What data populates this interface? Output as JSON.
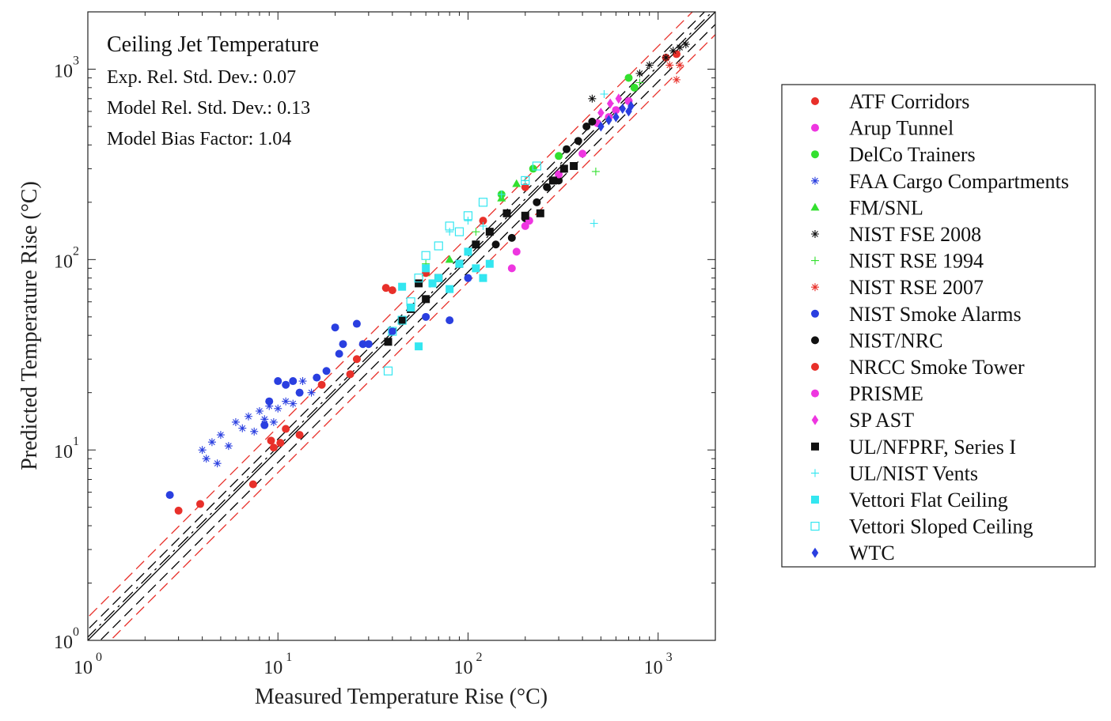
{
  "chart_data": {
    "type": "scatter",
    "title": "",
    "xlabel": "Measured Temperature Rise (°C)",
    "ylabel": "Predicted Temperature Rise (°C)",
    "xscale": "log",
    "yscale": "log",
    "xlim": [
      1,
      2000
    ],
    "ylim": [
      1,
      2000
    ],
    "xticks": [
      {
        "base": "10",
        "exp": "0",
        "value": 1
      },
      {
        "base": "10",
        "exp": "1",
        "value": 10
      },
      {
        "base": "10",
        "exp": "2",
        "value": 100
      },
      {
        "base": "10",
        "exp": "3",
        "value": 1000
      }
    ],
    "yticks": [
      {
        "base": "10",
        "exp": "0",
        "value": 1
      },
      {
        "base": "10",
        "exp": "1",
        "value": 10
      },
      {
        "base": "10",
        "exp": "2",
        "value": 100
      },
      {
        "base": "10",
        "exp": "3",
        "value": 1000
      }
    ],
    "annotations": {
      "title": "Ceiling Jet Temperature",
      "exp_std": "Exp. Rel. Std. Dev.: 0.07",
      "model_std": "Model Rel. Std. Dev.: 0.13",
      "bias": "Model Bias Factor: 1.04"
    },
    "legend_position": "outside-right",
    "reference_lines": {
      "identity": {
        "slope": 1.0,
        "color": "#000000",
        "style": "solid"
      },
      "exp_bounds": {
        "factors": [
          0.86,
          1.14
        ],
        "color": "#000000",
        "style": "dashed"
      },
      "model_line": {
        "factor": 1.04,
        "color": "#000000",
        "style": "dashdot"
      },
      "model_bounds": {
        "factors": [
          0.76,
          1.32
        ],
        "color": "#e8302a",
        "style": "dashed"
      }
    },
    "series": [
      {
        "name": "ATF Corridors",
        "marker": "circle",
        "color": "#e8302a",
        "points": [
          [
            3.0,
            4.8
          ],
          [
            3.9,
            5.2
          ],
          [
            7.4,
            6.6
          ],
          [
            9.2,
            11.2
          ],
          [
            9.5,
            10.3
          ],
          [
            10.3,
            10.9
          ],
          [
            11.0,
            12.9
          ],
          [
            13.0,
            12.0
          ],
          [
            17.0,
            22.0
          ],
          [
            24.0,
            25.0
          ],
          [
            26.0,
            30.0
          ],
          [
            1100,
            1150
          ],
          [
            1250,
            1200
          ]
        ]
      },
      {
        "name": "Arup Tunnel",
        "marker": "circle",
        "color": "#ee36e0",
        "points": [
          [
            180,
            110
          ],
          [
            200,
            150
          ],
          [
            480,
            520
          ],
          [
            600,
            610
          ],
          [
            700,
            680
          ]
        ]
      },
      {
        "name": "DelCo Trainers",
        "marker": "circle",
        "color": "#33e02f",
        "points": [
          [
            150,
            220
          ],
          [
            220,
            300
          ],
          [
            300,
            350
          ],
          [
            700,
            900
          ],
          [
            750,
            800
          ]
        ]
      },
      {
        "name": "FAA Cargo Compartments",
        "marker": "asterisk",
        "color": "#2a3fe0",
        "points": [
          [
            4.0,
            10.0
          ],
          [
            4.2,
            9.0
          ],
          [
            4.5,
            11.0
          ],
          [
            4.8,
            8.5
          ],
          [
            5.0,
            12.0
          ],
          [
            5.5,
            10.5
          ],
          [
            6.0,
            14.0
          ],
          [
            6.5,
            13.0
          ],
          [
            7.0,
            15.0
          ],
          [
            7.5,
            12.5
          ],
          [
            8.0,
            16.0
          ],
          [
            8.5,
            14.5
          ],
          [
            9.0,
            17.0
          ],
          [
            9.5,
            14.0
          ],
          [
            10.0,
            16.5
          ],
          [
            11.0,
            18.0
          ],
          [
            12.0,
            17.5
          ],
          [
            13.5,
            23.0
          ],
          [
            15.0,
            20.0
          ]
        ]
      },
      {
        "name": "FM/SNL",
        "marker": "triangle",
        "color": "#33e02f",
        "points": [
          [
            60,
            85
          ],
          [
            80,
            100
          ],
          [
            150,
            210
          ],
          [
            180,
            250
          ]
        ]
      },
      {
        "name": "NIST FSE 2008",
        "marker": "asterisk",
        "color": "#111111",
        "points": [
          [
            450,
            700
          ],
          [
            800,
            950
          ],
          [
            900,
            1050
          ],
          [
            1100,
            1150
          ],
          [
            1200,
            1250
          ],
          [
            1300,
            1300
          ],
          [
            1400,
            1350
          ]
        ]
      },
      {
        "name": "NIST RSE 1994",
        "marker": "plus",
        "color": "#33e02f",
        "points": [
          [
            60,
            95
          ],
          [
            110,
            140
          ],
          [
            200,
            260
          ],
          [
            470,
            290
          ],
          [
            800,
            850
          ]
        ]
      },
      {
        "name": "NIST RSE 2007",
        "marker": "asterisk",
        "color": "#e8302a",
        "points": [
          [
            1150,
            1050
          ],
          [
            1250,
            880
          ],
          [
            1300,
            1050
          ]
        ]
      },
      {
        "name": "NIST Smoke Alarms",
        "marker": "circle",
        "color": "#2a3fe0",
        "points": [
          [
            2.7,
            5.8
          ],
          [
            8.5,
            13.5
          ],
          [
            9.0,
            18.0
          ],
          [
            10.0,
            23.0
          ],
          [
            11.0,
            22.0
          ],
          [
            12.0,
            23.0
          ],
          [
            13.0,
            20.0
          ],
          [
            16.0,
            24.0
          ],
          [
            18.0,
            26.0
          ],
          [
            20.0,
            44.0
          ],
          [
            21.0,
            32.0
          ],
          [
            22.0,
            36.0
          ],
          [
            26.0,
            46.0
          ],
          [
            28.0,
            36.0
          ],
          [
            30.0,
            36.0
          ],
          [
            40.0,
            42.0
          ],
          [
            60.0,
            50.0
          ],
          [
            80.0,
            48.0
          ],
          [
            100.0,
            80.0
          ]
        ]
      },
      {
        "name": "NIST/NRC",
        "marker": "circle",
        "color": "#111111",
        "points": [
          [
            140,
            120
          ],
          [
            170,
            130
          ],
          [
            200,
            165
          ],
          [
            230,
            200
          ],
          [
            260,
            240
          ],
          [
            300,
            260
          ],
          [
            330,
            380
          ],
          [
            380,
            420
          ],
          [
            420,
            500
          ],
          [
            450,
            530
          ]
        ]
      },
      {
        "name": "NRCC Smoke Tower",
        "marker": "circle",
        "color": "#e8302a",
        "points": [
          [
            37,
            71
          ],
          [
            40,
            69
          ],
          [
            60,
            85
          ],
          [
            120,
            160
          ],
          [
            200,
            240
          ]
        ]
      },
      {
        "name": "PRISME",
        "marker": "circle",
        "color": "#ee36e0",
        "points": [
          [
            170,
            90
          ],
          [
            210,
            160
          ],
          [
            300,
            280
          ],
          [
            400,
            360
          ],
          [
            550,
            560
          ]
        ]
      },
      {
        "name": "SP AST",
        "marker": "diamond",
        "color": "#ee36e0",
        "points": [
          [
            500,
            590
          ],
          [
            560,
            660
          ],
          [
            620,
            700
          ]
        ]
      },
      {
        "name": "UL/NFPRF, Series I",
        "marker": "square",
        "color": "#111111",
        "points": [
          [
            38,
            37
          ],
          [
            45,
            48
          ],
          [
            50,
            55
          ],
          [
            55,
            75
          ],
          [
            60,
            62
          ],
          [
            70,
            80
          ],
          [
            90,
            95
          ],
          [
            110,
            120
          ],
          [
            130,
            140
          ],
          [
            160,
            175
          ],
          [
            200,
            170
          ],
          [
            240,
            175
          ],
          [
            280,
            260
          ],
          [
            320,
            300
          ],
          [
            360,
            310
          ]
        ]
      },
      {
        "name": "UL/NIST Vents",
        "marker": "plus",
        "color": "#33e6f0",
        "points": [
          [
            80,
            140
          ],
          [
            100,
            160
          ],
          [
            120,
            150
          ],
          [
            150,
            220
          ],
          [
            200,
            260
          ],
          [
            460,
            155
          ],
          [
            520,
            740
          ]
        ]
      },
      {
        "name": "Vettori Flat Ceiling",
        "marker": "square",
        "color": "#33e6f0",
        "points": [
          [
            45,
            72
          ],
          [
            50,
            56
          ],
          [
            55,
            35
          ],
          [
            60,
            90
          ],
          [
            65,
            75
          ],
          [
            70,
            80
          ],
          [
            80,
            70
          ],
          [
            90,
            95
          ],
          [
            100,
            110
          ],
          [
            110,
            90
          ],
          [
            120,
            80
          ],
          [
            130,
            95
          ]
        ]
      },
      {
        "name": "Vettori Sloped Ceiling",
        "marker": "square-open",
        "color": "#33e6f0",
        "points": [
          [
            38,
            26
          ],
          [
            40,
            42
          ],
          [
            45,
            48
          ],
          [
            50,
            60
          ],
          [
            55,
            80
          ],
          [
            60,
            105
          ],
          [
            70,
            118
          ],
          [
            80,
            150
          ],
          [
            90,
            140
          ],
          [
            100,
            170
          ],
          [
            120,
            200
          ],
          [
            200,
            260
          ],
          [
            230,
            310
          ]
        ]
      },
      {
        "name": "WTC",
        "marker": "diamond",
        "color": "#2a3fe0",
        "points": [
          [
            500,
            500
          ],
          [
            550,
            540
          ],
          [
            600,
            560
          ],
          [
            650,
            620
          ],
          [
            700,
            600
          ],
          [
            720,
            640
          ]
        ]
      }
    ]
  }
}
